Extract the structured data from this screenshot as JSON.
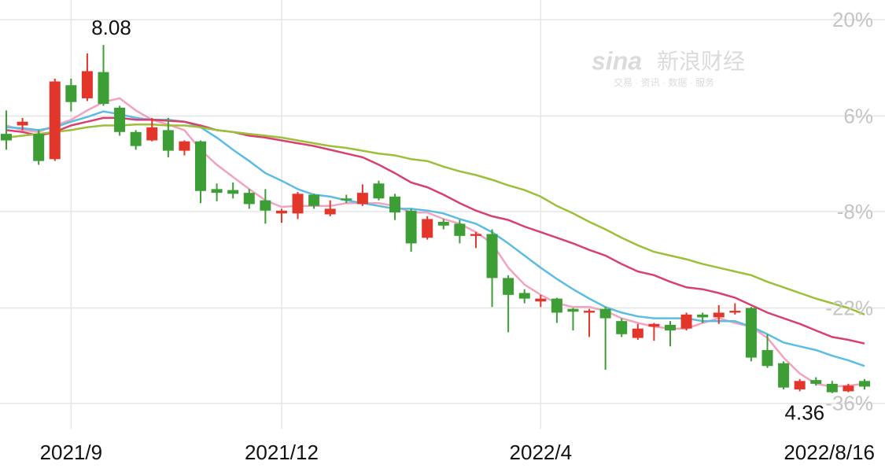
{
  "chart_data": {
    "type": "candlestick",
    "categories": [
      null,
      null,
      null,
      null,
      "2021/9",
      null,
      null,
      null,
      null,
      null,
      null,
      null,
      null,
      null,
      null,
      null,
      null,
      "2021/12",
      null,
      null,
      null,
      null,
      null,
      null,
      null,
      null,
      null,
      null,
      null,
      null,
      null,
      null,
      null,
      "2022/4",
      null,
      null,
      null,
      null,
      null,
      null,
      null,
      null,
      null,
      null,
      null,
      null,
      null,
      null,
      null,
      null,
      null,
      null,
      null,
      "2022/8/16"
    ],
    "open": [
      7.13,
      7.22,
      7.13,
      6.86,
      7.65,
      7.51,
      7.79,
      7.41,
      7.15,
      7.06,
      7.17,
      6.95,
      7.05,
      6.54,
      6.53,
      6.5,
      6.42,
      6.28,
      6.28,
      6.48,
      6.27,
      6.44,
      6.38,
      6.6,
      6.46,
      6.31,
      6.02,
      6.19,
      6.17,
      6.04,
      6.06,
      5.59,
      5.43,
      5.34,
      5.37,
      5.26,
      5.22,
      5.26,
      5.13,
      4.95,
      5.07,
      5.09,
      5.05,
      5.2,
      5.17,
      5.22,
      5.27,
      4.82,
      4.68,
      4.4,
      4.5,
      4.46,
      4.38,
      4.49
    ],
    "high": [
      7.38,
      7.3,
      7.17,
      7.72,
      7.72,
      7.99,
      8.08,
      7.43,
      7.17,
      7.3,
      7.3,
      7.06,
      7.06,
      6.6,
      6.61,
      6.54,
      6.54,
      6.33,
      6.51,
      6.49,
      6.42,
      6.48,
      6.59,
      6.63,
      6.49,
      6.33,
      6.25,
      6.22,
      6.21,
      6.08,
      6.11,
      5.62,
      5.47,
      5.41,
      5.38,
      5.27,
      5.26,
      5.28,
      5.16,
      5.1,
      5.11,
      5.13,
      5.22,
      5.22,
      5.3,
      5.32,
      5.28,
      4.99,
      4.7,
      4.51,
      4.53,
      4.49,
      4.46,
      4.51
    ],
    "low": [
      6.96,
      7.17,
      6.8,
      6.84,
      7.37,
      7.48,
      7.43,
      7.11,
      6.96,
      7.05,
      6.88,
      6.9,
      6.39,
      6.41,
      6.44,
      6.33,
      6.17,
      6.18,
      6.22,
      6.33,
      6.25,
      6.39,
      6.36,
      6.42,
      6.21,
      5.87,
      6.0,
      6.11,
      5.96,
      5.91,
      5.28,
      5.01,
      5.32,
      5.28,
      5.11,
      5.03,
      4.96,
      4.61,
      4.96,
      4.93,
      4.92,
      4.86,
      5.03,
      5.11,
      5.1,
      5.2,
      4.7,
      4.63,
      4.4,
      4.38,
      4.44,
      4.36,
      4.37,
      4.4
    ],
    "close": [
      7.06,
      7.26,
      6.84,
      7.69,
      7.47,
      7.8,
      7.45,
      7.15,
      7.0,
      7.2,
      6.95,
      7.05,
      6.52,
      6.5,
      6.49,
      6.38,
      6.31,
      6.31,
      6.49,
      6.36,
      6.33,
      6.42,
      6.5,
      6.44,
      6.29,
      5.96,
      6.22,
      6.15,
      6.04,
      6.06,
      5.59,
      5.41,
      5.37,
      5.37,
      5.22,
      5.23,
      5.24,
      5.16,
      4.99,
      5.05,
      5.1,
      5.03,
      5.2,
      5.17,
      5.22,
      5.24,
      4.74,
      4.65,
      4.42,
      4.49,
      4.46,
      4.37,
      4.44,
      4.43
    ],
    "up_color": "#e2362b",
    "down_color": "#3d9e35",
    "series": [
      {
        "name": "MA5",
        "color": "#f2a3bd",
        "values": [
          7.22,
          7.17,
          7.15,
          7.22,
          7.28,
          7.38,
          7.47,
          7.51,
          7.38,
          7.28,
          7.23,
          7.17,
          6.96,
          6.8,
          6.67,
          6.54,
          6.42,
          6.35,
          6.36,
          6.36,
          6.36,
          6.39,
          6.39,
          6.39,
          6.36,
          6.29,
          6.29,
          6.22,
          6.17,
          6.08,
          5.96,
          5.7,
          5.52,
          5.41,
          5.32,
          5.28,
          5.28,
          5.24,
          5.16,
          5.11,
          5.07,
          5.05,
          5.05,
          5.11,
          5.16,
          5.11,
          5.07,
          4.95,
          4.74,
          4.57,
          4.46,
          4.43,
          4.44,
          4.46
        ]
      },
      {
        "name": "MA10",
        "color": "#5bbde3",
        "values": [
          7.2,
          7.19,
          7.17,
          7.2,
          7.26,
          7.31,
          7.37,
          7.34,
          7.3,
          7.28,
          7.28,
          7.26,
          7.2,
          7.09,
          6.96,
          6.84,
          6.71,
          6.63,
          6.54,
          6.48,
          6.46,
          6.42,
          6.39,
          6.36,
          6.33,
          6.33,
          6.31,
          6.28,
          6.22,
          6.17,
          6.08,
          5.96,
          5.83,
          5.7,
          5.58,
          5.47,
          5.37,
          5.28,
          5.22,
          5.18,
          5.16,
          5.16,
          5.16,
          5.13,
          5.13,
          5.13,
          5.07,
          4.99,
          4.9,
          4.86,
          4.82,
          4.76,
          4.71,
          4.65
        ]
      },
      {
        "color": "#d8416d",
        "values": [
          7.17,
          7.15,
          7.11,
          7.15,
          7.22,
          7.26,
          7.3,
          7.3,
          7.28,
          7.28,
          7.27,
          7.26,
          7.22,
          7.17,
          7.15,
          7.11,
          7.09,
          7.06,
          7.03,
          7.0,
          6.96,
          6.92,
          6.88,
          6.8,
          6.71,
          6.61,
          6.56,
          6.48,
          6.39,
          6.31,
          6.25,
          6.21,
          6.14,
          6.08,
          6.02,
          5.96,
          5.89,
          5.83,
          5.74,
          5.66,
          5.62,
          5.55,
          5.49,
          5.47,
          5.43,
          5.38,
          5.3,
          5.22,
          5.16,
          5.1,
          5.03,
          4.96,
          4.93,
          4.89
        ]
      },
      {
        "color": "#9dbf3a",
        "values": [
          7.09,
          7.11,
          7.13,
          7.15,
          7.17,
          7.2,
          7.22,
          7.22,
          7.23,
          7.23,
          7.22,
          7.22,
          7.2,
          7.17,
          7.15,
          7.13,
          7.11,
          7.09,
          7.06,
          7.03,
          7.0,
          6.98,
          6.95,
          6.92,
          6.9,
          6.86,
          6.84,
          6.78,
          6.73,
          6.69,
          6.64,
          6.58,
          6.53,
          6.46,
          6.36,
          6.28,
          6.19,
          6.11,
          6.02,
          5.94,
          5.87,
          5.83,
          5.79,
          5.74,
          5.7,
          5.66,
          5.62,
          5.55,
          5.49,
          5.43,
          5.37,
          5.32,
          5.27,
          5.2
        ]
      }
    ],
    "ylim": [
      3.98,
      8.56
    ],
    "yticks": [
      {
        "value": 8.35,
        "label": "20%"
      },
      {
        "value": 7.32,
        "label": "6%"
      },
      {
        "value": 6.3,
        "label": "-8%"
      },
      {
        "value": 5.27,
        "label": "-22%"
      },
      {
        "value": 4.25,
        "label": "-36%"
      }
    ],
    "grid": true,
    "watermark": {
      "brand": "sina",
      "name": "新浪财经",
      "tagline": "交易 · 资讯 · 数据 · 服务"
    }
  }
}
